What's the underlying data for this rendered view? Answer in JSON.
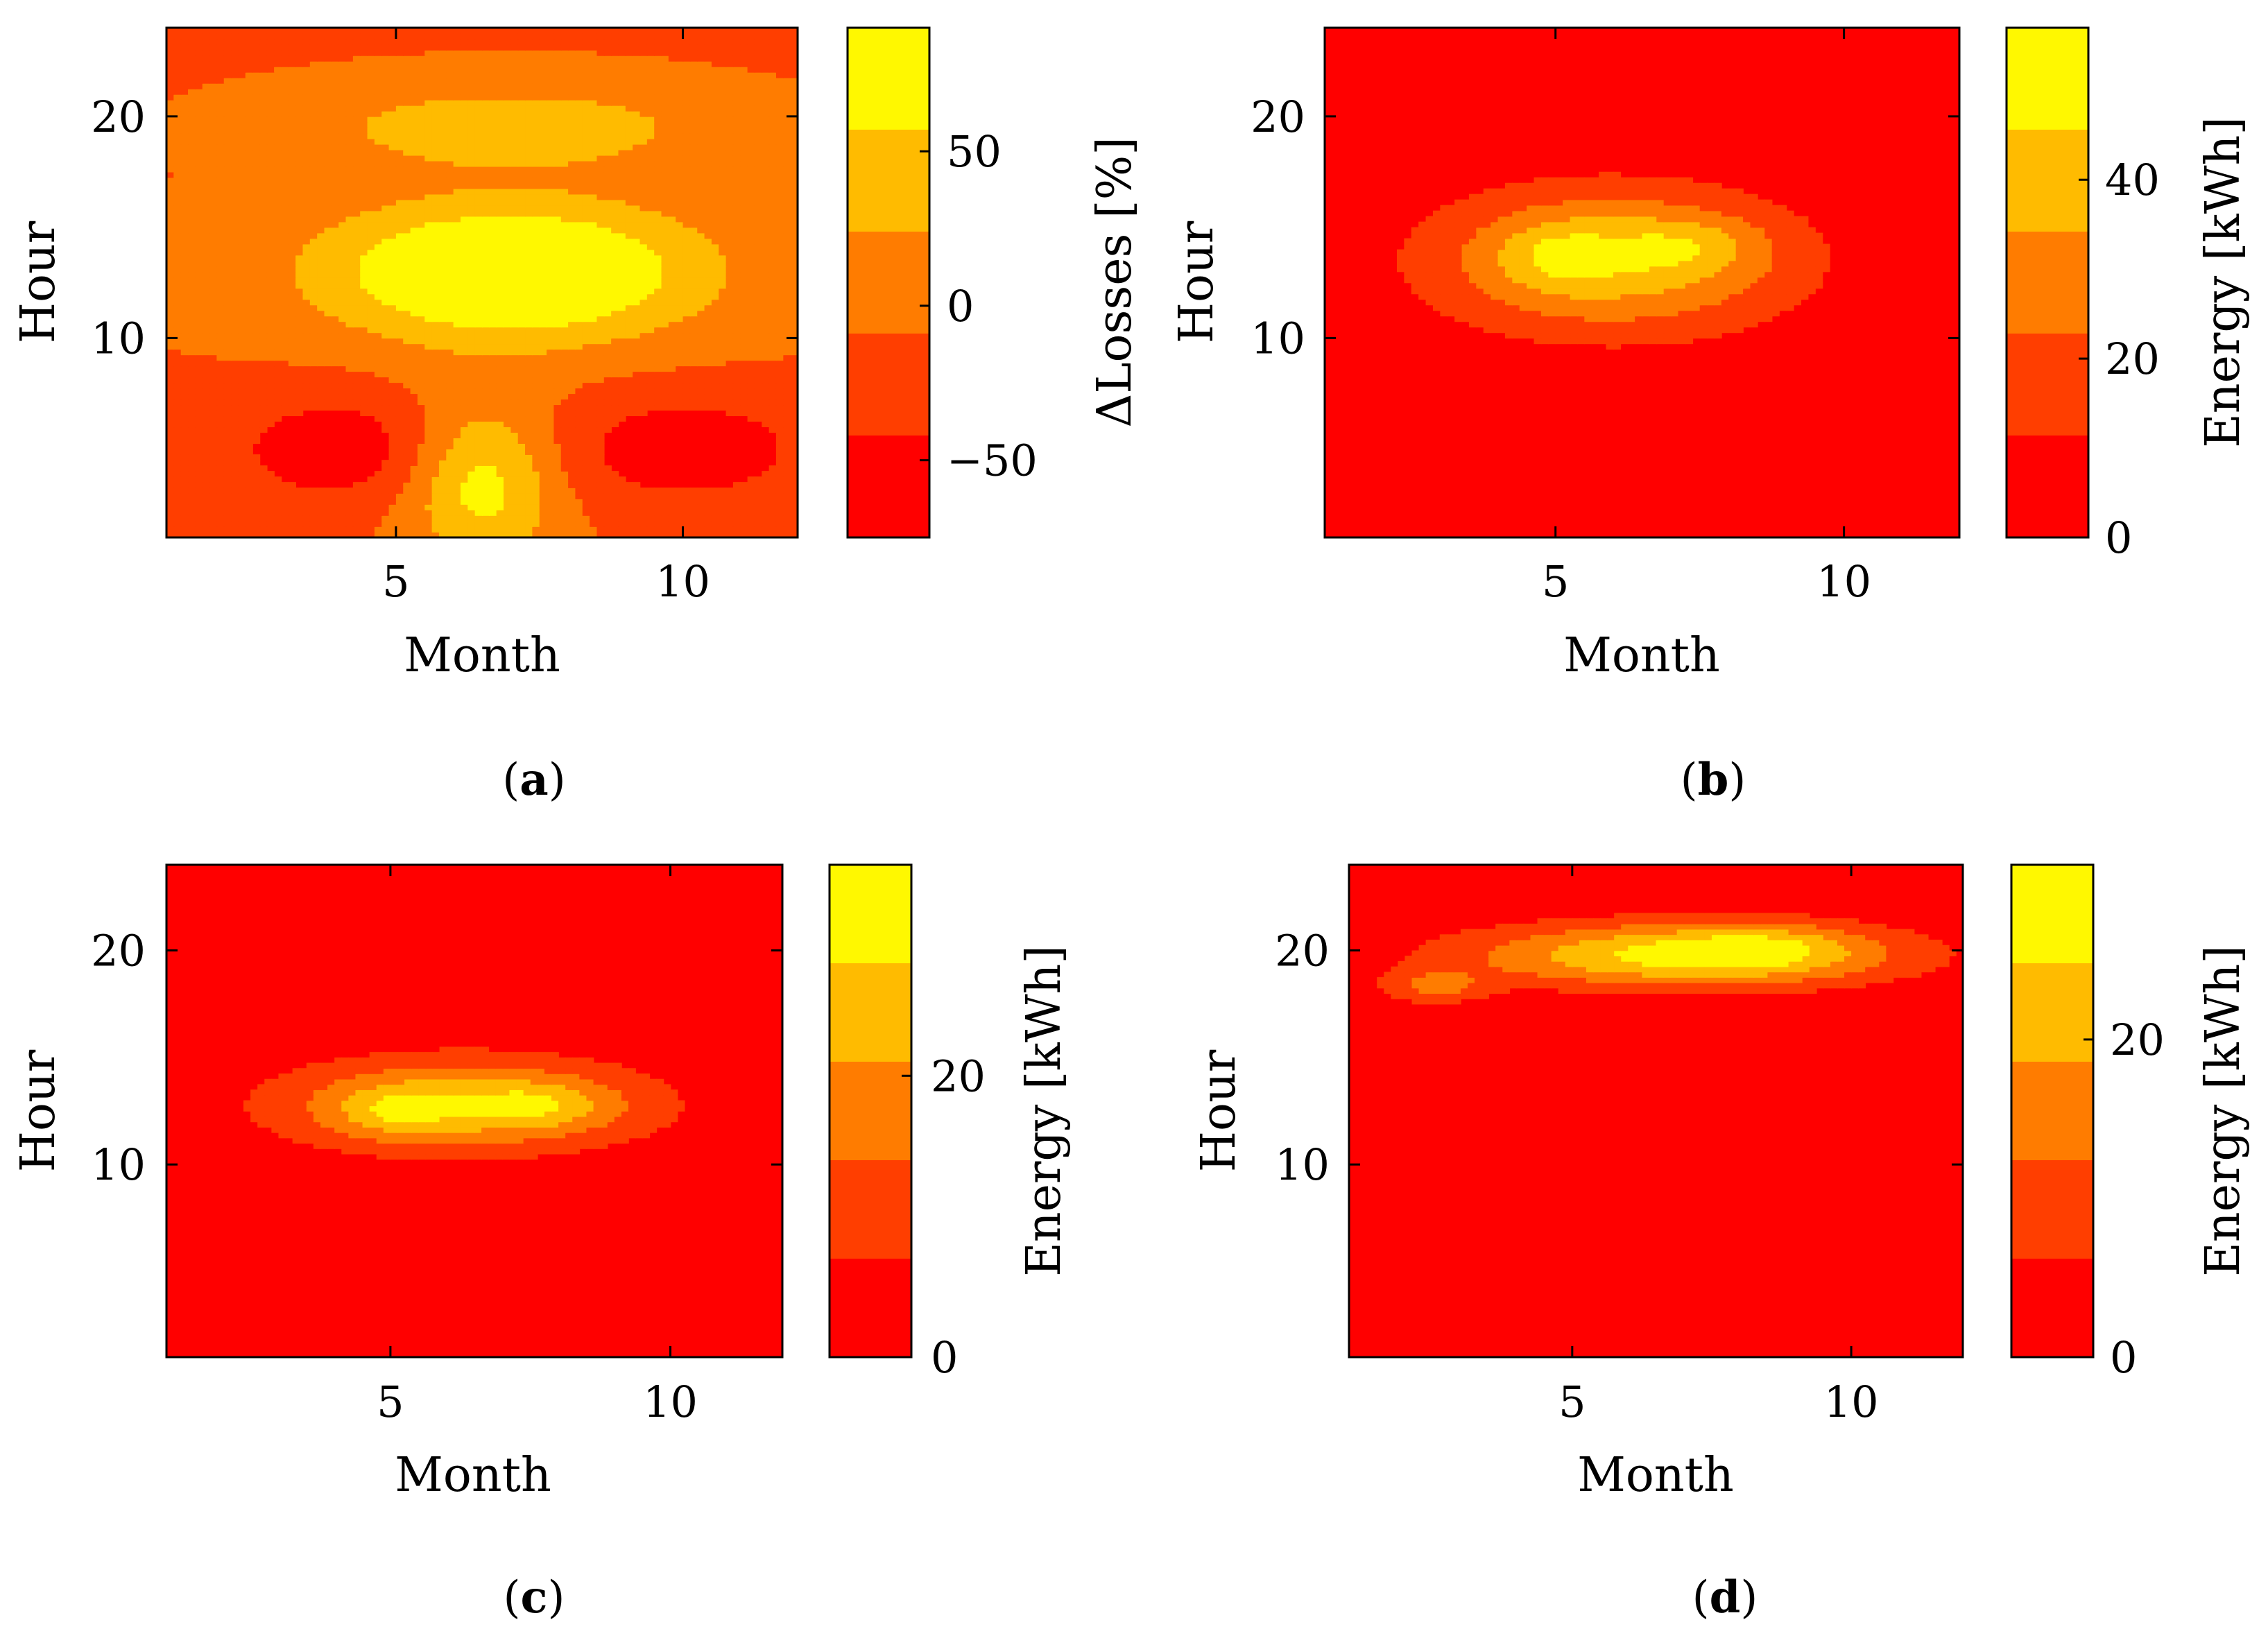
{
  "figure": {
    "colors": {
      "level_colors": [
        "#ff0000",
        "#ff3e00",
        "#ff7c00",
        "#ffbb00",
        "#fff800"
      ],
      "frame": "#000000",
      "background": "#ffffff"
    }
  },
  "chart_data": [
    {
      "id": "a",
      "type": "heatmap",
      "subtype": "filled-contour",
      "caption_letter": "a",
      "xlabel": "Month",
      "ylabel": "Hour",
      "colorbar_label": "ΔLosses [%]",
      "xlim": [
        1,
        12
      ],
      "ylim": [
        1,
        24
      ],
      "xticks": [
        5,
        10
      ],
      "xtick_labels": [
        "5",
        "10"
      ],
      "yticks": [
        10,
        20
      ],
      "ytick_labels": [
        "10",
        "20"
      ],
      "colorbar_range": [
        -75,
        90
      ],
      "colorbar_ticks": [
        -50,
        0,
        50
      ],
      "colorbar_tick_labels": [
        "−50",
        "0",
        "50"
      ],
      "levels": [
        -75,
        -42,
        -9,
        24,
        57,
        90
      ],
      "peaks": [
        {
          "x": 7,
          "y": 13,
          "sx": 2.3,
          "sy": 2.2,
          "a": 130
        },
        {
          "x": 7,
          "y": 19.5,
          "sx": 2.2,
          "sy": 1.2,
          "a": 65
        },
        {
          "x": 6.5,
          "y": 3.5,
          "sx": 0.9,
          "sy": 2.5,
          "a": 85
        },
        {
          "x": 4,
          "y": 5,
          "sx": 1.4,
          "sy": 1.8,
          "a": -55
        },
        {
          "x": 10,
          "y": 5,
          "sx": 1.6,
          "sy": 1.8,
          "a": -55
        }
      ],
      "base_value": -10
    },
    {
      "id": "b",
      "type": "heatmap",
      "subtype": "filled-contour",
      "caption_letter": "b",
      "xlabel": "Month",
      "ylabel": "Hour",
      "colorbar_label": "Energy [kWh]",
      "xlim": [
        1,
        12
      ],
      "ylim": [
        1,
        24
      ],
      "xticks": [
        5,
        10
      ],
      "xtick_labels": [
        "5",
        "10"
      ],
      "yticks": [
        10,
        20
      ],
      "ytick_labels": [
        "10",
        "20"
      ],
      "colorbar_range": [
        0,
        57
      ],
      "colorbar_ticks": [
        0,
        20,
        40
      ],
      "colorbar_tick_labels": [
        "0",
        "20",
        "40"
      ],
      "levels": [
        0,
        11.4,
        22.8,
        34.2,
        45.6,
        57
      ],
      "peaks": [
        {
          "x": 6,
          "y": 13.5,
          "sx": 2.3,
          "sy": 2.4,
          "a": 42
        },
        {
          "x": 5,
          "y": 13.8,
          "sx": 0.7,
          "sy": 1.1,
          "a": 13
        },
        {
          "x": 7.3,
          "y": 14.2,
          "sx": 0.9,
          "sy": 0.9,
          "a": 13
        }
      ],
      "base_value": 0
    },
    {
      "id": "c",
      "type": "heatmap",
      "subtype": "filled-contour",
      "caption_letter": "c",
      "xlabel": "Month",
      "ylabel": "Hour",
      "colorbar_label": "Energy [kWh]",
      "xlim": [
        1,
        12
      ],
      "ylim": [
        1,
        24
      ],
      "xticks": [
        5,
        10
      ],
      "xtick_labels": [
        "5",
        "10"
      ],
      "yticks": [
        10,
        20
      ],
      "ytick_labels": [
        "10",
        "20"
      ],
      "colorbar_range": [
        0,
        35
      ],
      "colorbar_ticks": [
        0,
        20
      ],
      "colorbar_tick_labels": [
        "0",
        "20"
      ],
      "levels": [
        0,
        7,
        14,
        21,
        28,
        35
      ],
      "peaks": [
        {
          "x": 6.3,
          "y": 12.8,
          "sx": 2.4,
          "sy": 1.6,
          "a": 26
        },
        {
          "x": 5.1,
          "y": 12.5,
          "sx": 0.7,
          "sy": 0.8,
          "a": 9
        },
        {
          "x": 7.7,
          "y": 12.8,
          "sx": 0.8,
          "sy": 0.7,
          "a": 9
        }
      ],
      "base_value": 0
    },
    {
      "id": "d",
      "type": "heatmap",
      "subtype": "filled-contour",
      "caption_letter": "d",
      "xlabel": "Month",
      "ylabel": "Hour",
      "colorbar_label": "Energy [kWh]",
      "xlim": [
        1,
        12
      ],
      "ylim": [
        1,
        24
      ],
      "xticks": [
        5,
        10
      ],
      "xtick_labels": [
        "5",
        "10"
      ],
      "yticks": [
        10,
        20
      ],
      "ytick_labels": [
        "10",
        "20"
      ],
      "colorbar_range": [
        0,
        31
      ],
      "colorbar_ticks": [
        0,
        20
      ],
      "colorbar_tick_labels": [
        "0",
        "20"
      ],
      "levels": [
        0,
        6.2,
        12.4,
        18.6,
        24.8,
        31
      ],
      "peaks": [
        {
          "x": 7,
          "y": 19.8,
          "sx": 2.8,
          "sy": 1.1,
          "a": 27
        },
        {
          "x": 8.5,
          "y": 20.2,
          "sx": 1.1,
          "sy": 0.8,
          "a": 8
        },
        {
          "x": 2.5,
          "y": 18.3,
          "sx": 0.7,
          "sy": 0.6,
          "a": 12
        }
      ],
      "base_value": 0
    }
  ]
}
